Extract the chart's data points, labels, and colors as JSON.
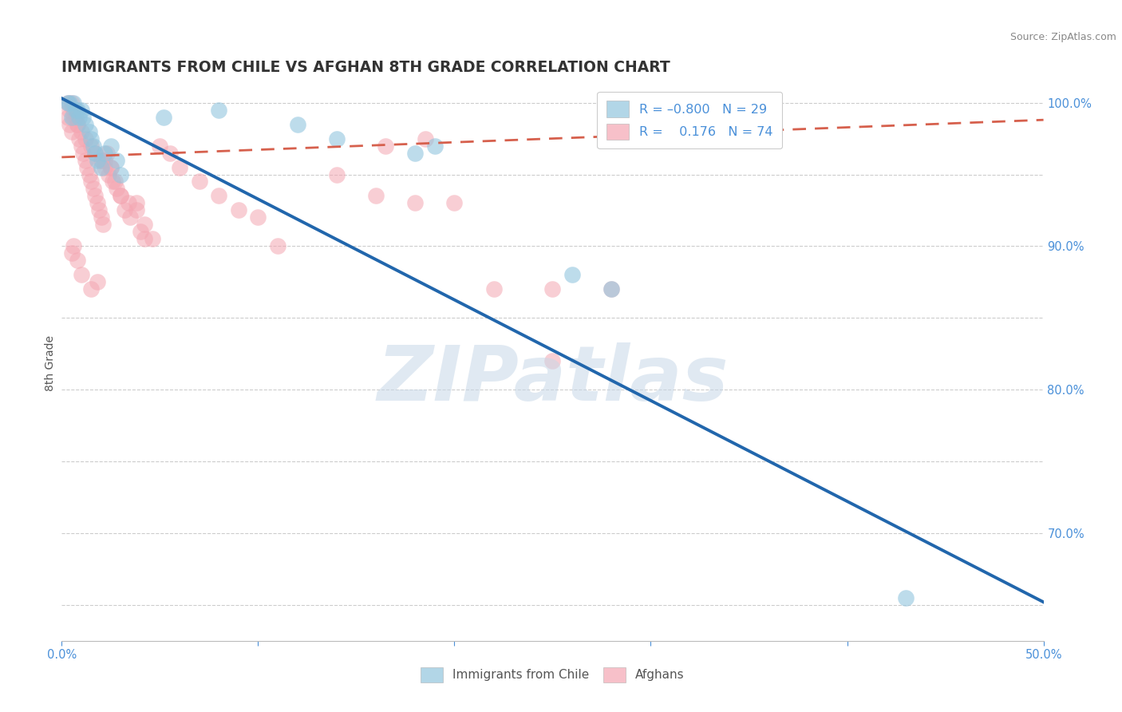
{
  "title": "IMMIGRANTS FROM CHILE VS AFGHAN 8TH GRADE CORRELATION CHART",
  "source_text": "Source: ZipAtlas.com",
  "ylabel": "8th Grade",
  "watermark": "ZIPatlas",
  "xlim": [
    0.0,
    0.5
  ],
  "ylim": [
    0.625,
    1.012
  ],
  "ytick_positions": [
    0.65,
    0.7,
    0.75,
    0.8,
    0.85,
    0.9,
    0.95,
    1.0
  ],
  "ytick_labels_right": [
    "",
    "70.0%",
    "",
    "80.0%",
    "",
    "90.0%",
    "",
    "100.0%"
  ],
  "blue_scatter_color": "#92c5de",
  "pink_scatter_color": "#f4a6b2",
  "blue_line_color": "#2166ac",
  "pink_line_color": "#d6604d",
  "grid_color": "#cccccc",
  "title_color": "#333333",
  "axis_color": "#4a90d9",
  "background_color": "#ffffff",
  "title_fontsize": 13.5,
  "axis_label_fontsize": 10,
  "tick_fontsize": 10.5,
  "watermark_color": "#c8d8e8",
  "watermark_fontsize": 70,
  "blue_line_x": [
    0.0,
    0.5
  ],
  "blue_line_y": [
    1.003,
    0.652
  ],
  "pink_line_x": [
    0.0,
    0.5
  ],
  "pink_line_y": [
    0.962,
    0.988
  ],
  "blue_x": [
    0.003,
    0.004,
    0.005,
    0.006,
    0.007,
    0.008,
    0.009,
    0.01,
    0.011,
    0.012,
    0.014,
    0.015,
    0.016,
    0.017,
    0.018,
    0.02,
    0.022,
    0.025,
    0.028,
    0.03,
    0.052,
    0.08,
    0.12,
    0.18,
    0.28,
    0.43,
    0.19,
    0.14,
    0.26
  ],
  "blue_y": [
    1.0,
    1.0,
    0.99,
    1.0,
    0.995,
    0.995,
    0.99,
    0.995,
    0.99,
    0.985,
    0.98,
    0.975,
    0.97,
    0.965,
    0.96,
    0.955,
    0.965,
    0.97,
    0.96,
    0.95,
    0.99,
    0.995,
    0.985,
    0.965,
    0.87,
    0.655,
    0.97,
    0.975,
    0.88
  ],
  "pink_x": [
    0.003,
    0.004,
    0.005,
    0.005,
    0.006,
    0.007,
    0.008,
    0.009,
    0.01,
    0.011,
    0.012,
    0.013,
    0.014,
    0.015,
    0.016,
    0.017,
    0.018,
    0.019,
    0.02,
    0.021,
    0.022,
    0.023,
    0.025,
    0.027,
    0.03,
    0.032,
    0.035,
    0.038,
    0.04,
    0.042,
    0.003,
    0.004,
    0.006,
    0.008,
    0.01,
    0.012,
    0.015,
    0.017,
    0.02,
    0.022,
    0.024,
    0.026,
    0.028,
    0.03,
    0.034,
    0.038,
    0.042,
    0.046,
    0.05,
    0.055,
    0.06,
    0.07,
    0.08,
    0.09,
    0.1,
    0.11,
    0.14,
    0.16,
    0.18,
    0.2,
    0.22,
    0.25,
    0.28,
    0.25,
    0.165,
    0.185,
    0.01,
    0.008,
    0.006,
    0.005,
    0.015,
    0.018,
    0.02,
    0.025
  ],
  "pink_y": [
    0.99,
    0.985,
    0.98,
    1.0,
    0.995,
    0.99,
    0.985,
    0.975,
    0.97,
    0.965,
    0.96,
    0.955,
    0.95,
    0.945,
    0.94,
    0.935,
    0.93,
    0.925,
    0.92,
    0.915,
    0.96,
    0.965,
    0.955,
    0.945,
    0.935,
    0.925,
    0.92,
    0.93,
    0.91,
    0.905,
    1.0,
    0.995,
    0.99,
    0.985,
    0.98,
    0.975,
    0.97,
    0.965,
    0.96,
    0.955,
    0.95,
    0.945,
    0.94,
    0.935,
    0.93,
    0.925,
    0.915,
    0.905,
    0.97,
    0.965,
    0.955,
    0.945,
    0.935,
    0.925,
    0.92,
    0.9,
    0.95,
    0.935,
    0.93,
    0.93,
    0.87,
    0.87,
    0.87,
    0.82,
    0.97,
    0.975,
    0.88,
    0.89,
    0.9,
    0.895,
    0.87,
    0.875,
    0.96,
    0.955
  ]
}
